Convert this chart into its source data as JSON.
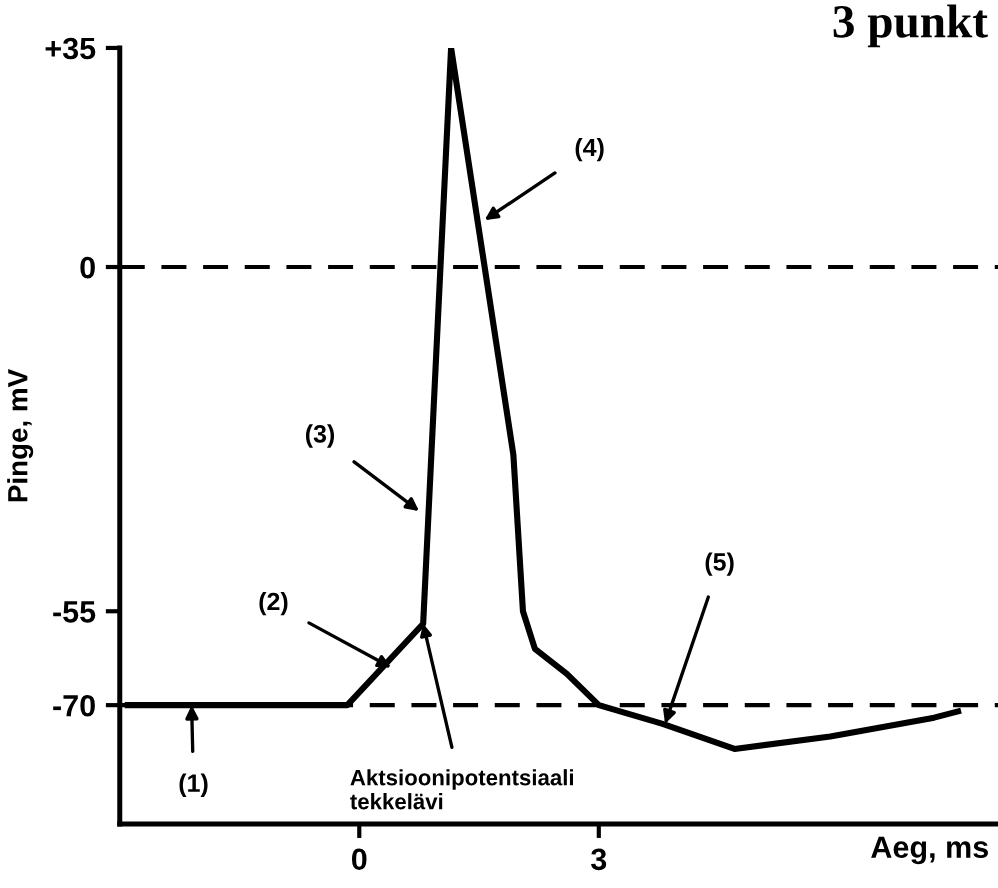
{
  "chart_data": {
    "type": "line",
    "title": "3 punkt",
    "xlabel": "Aeg, ms",
    "ylabel": "Pinge, mV",
    "x": [
      -2.9,
      -0.15,
      0.8,
      1.15,
      1.93,
      2.05,
      2.2,
      2.6,
      3.0,
      3.8,
      4.7,
      5.9,
      7.2,
      7.5
    ],
    "series": [
      {
        "color": "#000000",
        "values": [
          -70,
          -70,
          -57,
          35,
          -30,
          -55,
          -61,
          -65,
          -70,
          -73,
          -77,
          -75,
          -72,
          -71
        ]
      }
    ],
    "xlim": [
      -3,
      8
    ],
    "ylim": [
      -89,
      35
    ],
    "xticks": [
      0,
      3
    ],
    "yticks": [
      {
        "value": 35,
        "label": "+35"
      },
      0,
      -55,
      -70
    ],
    "ref_lines": [
      {
        "axis": "y",
        "value": 0,
        "line_style": "dashed",
        "color": "#000000"
      },
      {
        "axis": "y",
        "value": -70,
        "line_style": "dashed",
        "color": "#000000"
      }
    ],
    "annotations": [
      {
        "text": "(1)",
        "x": -2.1,
        "y": -70
      },
      {
        "text": "(2)",
        "x": 0.4,
        "y": -64
      },
      {
        "text": "(3)",
        "x": 0.75,
        "y": -39
      },
      {
        "text": "(4)",
        "x": 1.57,
        "y": 7.5
      },
      {
        "text": "(5)",
        "x": 3.83,
        "y": -73
      },
      {
        "text": "Aktsioonipotentsiaali\ntekkelävi",
        "x": 0.8,
        "y": -57
      }
    ],
    "grid": false,
    "line_style": "solid",
    "marker": "none"
  }
}
